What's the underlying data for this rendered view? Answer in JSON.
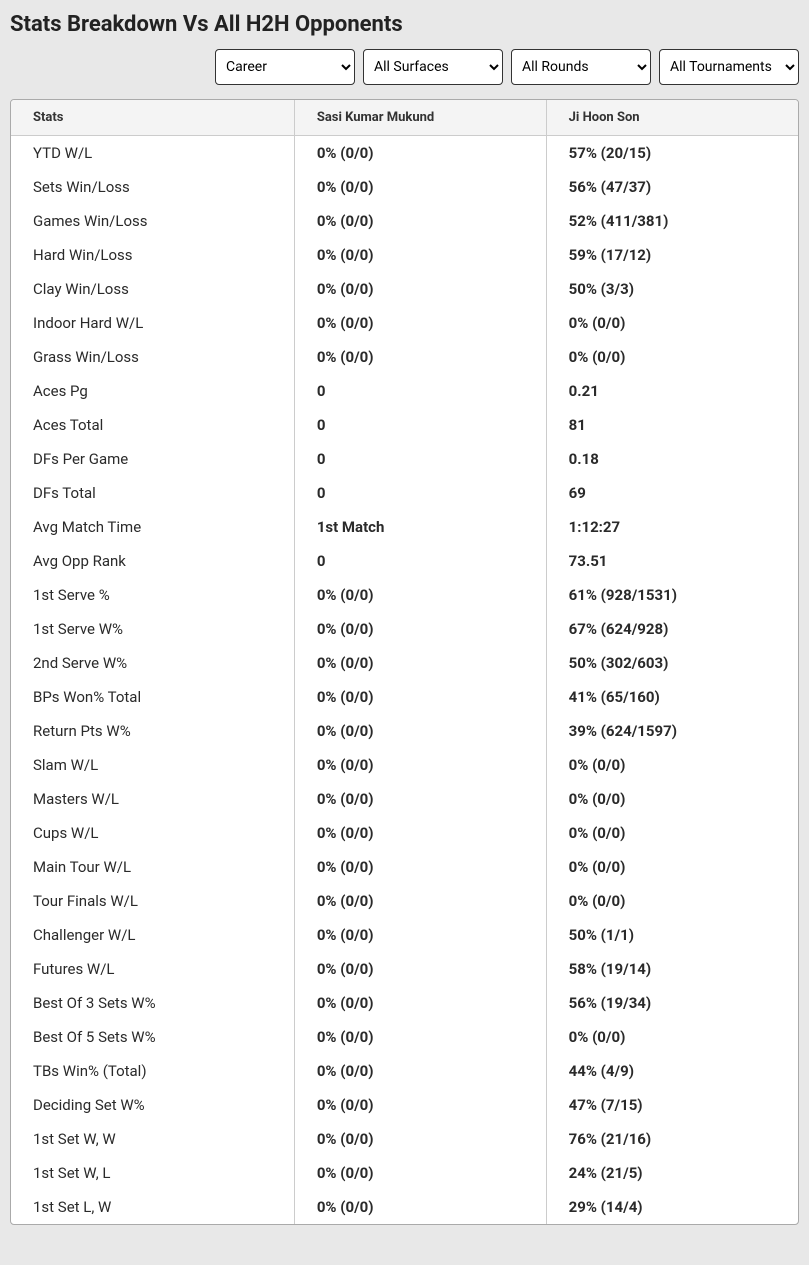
{
  "title": "Stats Breakdown Vs All H2H Opponents",
  "filters": {
    "period": {
      "selected": "Career",
      "options": [
        "Career"
      ]
    },
    "surface": {
      "selected": "All Surfaces",
      "options": [
        "All Surfaces"
      ]
    },
    "round": {
      "selected": "All Rounds",
      "options": [
        "All Rounds"
      ]
    },
    "tourn": {
      "selected": "All Tournaments",
      "options": [
        "All Tournaments"
      ]
    }
  },
  "table": {
    "headers": {
      "stats": "Stats",
      "p1": "Sasi Kumar Mukund",
      "p2": "Ji Hoon Son"
    },
    "rows": [
      {
        "stat": "YTD W/L",
        "p1": "0% (0/0)",
        "p2": "57% (20/15)"
      },
      {
        "stat": "Sets Win/Loss",
        "p1": "0% (0/0)",
        "p2": "56% (47/37)"
      },
      {
        "stat": "Games Win/Loss",
        "p1": "0% (0/0)",
        "p2": "52% (411/381)"
      },
      {
        "stat": "Hard Win/Loss",
        "p1": "0% (0/0)",
        "p2": "59% (17/12)"
      },
      {
        "stat": "Clay Win/Loss",
        "p1": "0% (0/0)",
        "p2": "50% (3/3)"
      },
      {
        "stat": "Indoor Hard W/L",
        "p1": "0% (0/0)",
        "p2": "0% (0/0)"
      },
      {
        "stat": "Grass Win/Loss",
        "p1": "0% (0/0)",
        "p2": "0% (0/0)"
      },
      {
        "stat": "Aces Pg",
        "p1": "0",
        "p2": "0.21"
      },
      {
        "stat": "Aces Total",
        "p1": "0",
        "p2": "81"
      },
      {
        "stat": "DFs Per Game",
        "p1": "0",
        "p2": "0.18"
      },
      {
        "stat": "DFs Total",
        "p1": "0",
        "p2": "69"
      },
      {
        "stat": "Avg Match Time",
        "p1": "1st Match",
        "p2": "1:12:27"
      },
      {
        "stat": "Avg Opp Rank",
        "p1": "0",
        "p2": "73.51"
      },
      {
        "stat": "1st Serve %",
        "p1": "0% (0/0)",
        "p2": "61% (928/1531)"
      },
      {
        "stat": "1st Serve W%",
        "p1": "0% (0/0)",
        "p2": "67% (624/928)"
      },
      {
        "stat": "2nd Serve W%",
        "p1": "0% (0/0)",
        "p2": "50% (302/603)"
      },
      {
        "stat": "BPs Won% Total",
        "p1": "0% (0/0)",
        "p2": "41% (65/160)"
      },
      {
        "stat": "Return Pts W%",
        "p1": "0% (0/0)",
        "p2": "39% (624/1597)"
      },
      {
        "stat": "Slam W/L",
        "p1": "0% (0/0)",
        "p2": "0% (0/0)"
      },
      {
        "stat": "Masters W/L",
        "p1": "0% (0/0)",
        "p2": "0% (0/0)"
      },
      {
        "stat": "Cups W/L",
        "p1": "0% (0/0)",
        "p2": "0% (0/0)"
      },
      {
        "stat": "Main Tour W/L",
        "p1": "0% (0/0)",
        "p2": "0% (0/0)"
      },
      {
        "stat": "Tour Finals W/L",
        "p1": "0% (0/0)",
        "p2": "0% (0/0)"
      },
      {
        "stat": "Challenger W/L",
        "p1": "0% (0/0)",
        "p2": "50% (1/1)"
      },
      {
        "stat": "Futures W/L",
        "p1": "0% (0/0)",
        "p2": "58% (19/14)"
      },
      {
        "stat": "Best Of 3 Sets W%",
        "p1": "0% (0/0)",
        "p2": "56% (19/34)"
      },
      {
        "stat": "Best Of 5 Sets W%",
        "p1": "0% (0/0)",
        "p2": "0% (0/0)"
      },
      {
        "stat": "TBs Win% (Total)",
        "p1": "0% (0/0)",
        "p2": "44% (4/9)"
      },
      {
        "stat": "Deciding Set W%",
        "p1": "0% (0/0)",
        "p2": "47% (7/15)"
      },
      {
        "stat": "1st Set W, W",
        "p1": "0% (0/0)",
        "p2": "76% (21/16)"
      },
      {
        "stat": "1st Set W, L",
        "p1": "0% (0/0)",
        "p2": "24% (21/5)"
      },
      {
        "stat": "1st Set L, W",
        "p1": "0% (0/0)",
        "p2": "29% (14/4)"
      }
    ]
  }
}
